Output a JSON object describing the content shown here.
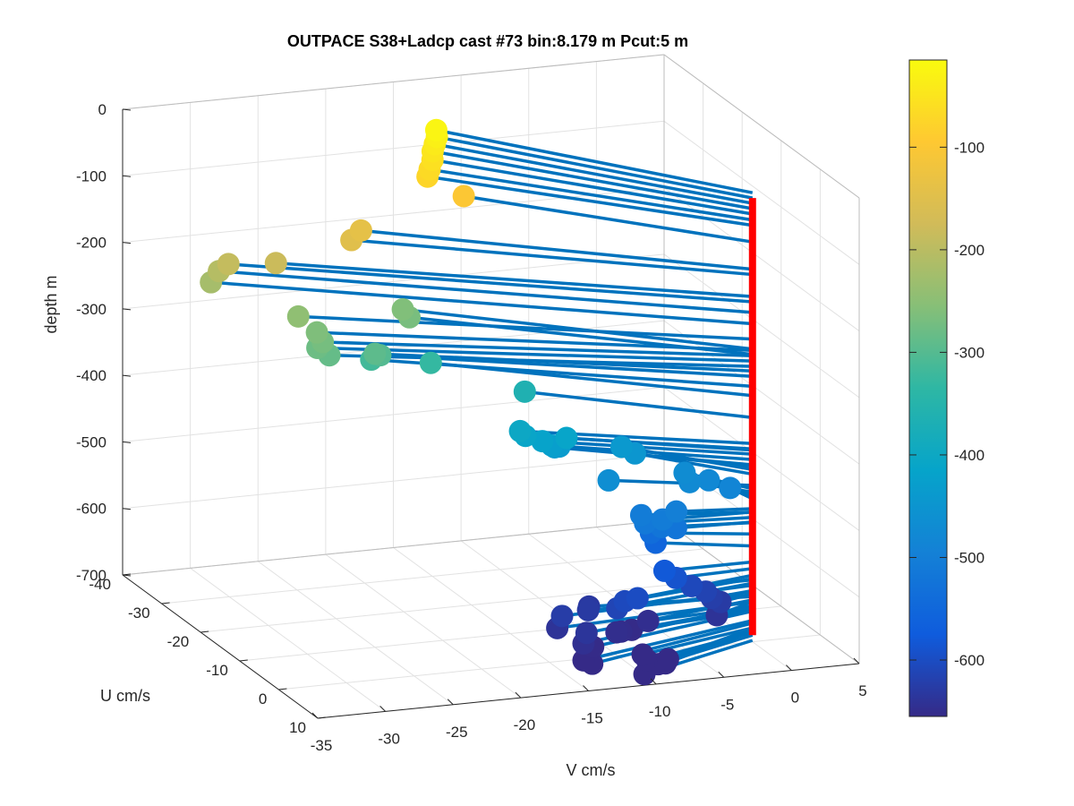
{
  "chart_data": {
    "type": "scatter",
    "title": "OUTPACE S38+Ladcp cast #73 bin:8.179 m  Pcut:5 m",
    "xlabel": "V cm/s",
    "ylabel": "U cm/s",
    "zlabel": "depth m",
    "view": "3d",
    "xlim": [
      -35,
      5
    ],
    "ylim": [
      -40,
      10
    ],
    "zlim": [
      -700,
      0
    ],
    "x_ticks": [
      "-35",
      "-30",
      "-25",
      "-20",
      "-15",
      "-10",
      "-5",
      "0",
      "5"
    ],
    "y_ticks": [
      "-40",
      "-30",
      "-20",
      "-10",
      "0",
      "10"
    ],
    "z_ticks": [
      "0",
      "-100",
      "-200",
      "-300",
      "-400",
      "-500",
      "-600",
      "-700"
    ],
    "grid": true,
    "colorbar": {
      "ticks": [
        "-100",
        "-200",
        "-300",
        "-400",
        "-500",
        "-600"
      ],
      "min": -655,
      "max": -15,
      "colormap": "parula"
    },
    "stick_origin": {
      "u": 0,
      "v": 0
    },
    "stick_color": "#0072BD",
    "origin_line_color": "#FF0000",
    "points_vud": [
      [
        -15.0,
        -29.0,
        -25
      ],
      [
        -15.1,
        -28.5,
        -33
      ],
      [
        -15.4,
        -28.0,
        -41
      ],
      [
        -15.7,
        -27.5,
        -49
      ],
      [
        -16.0,
        -26.5,
        -57
      ],
      [
        -16.5,
        -25.5,
        -66
      ],
      [
        -16.8,
        -25.0,
        -74
      ],
      [
        -14.7,
        -23.0,
        -99
      ],
      [
        -22.0,
        -24.0,
        -140
      ],
      [
        -23.0,
        -23.0,
        -148
      ],
      [
        -28.0,
        -25.0,
        -181
      ],
      [
        -30.7,
        -27.8,
        -189
      ],
      [
        -31.0,
        -29.2,
        -205
      ],
      [
        -31.5,
        -29.5,
        -222
      ],
      [
        -27.5,
        -21.0,
        -245
      ],
      [
        -26.7,
        -19.0,
        -262
      ],
      [
        -26.7,
        -17.5,
        -270
      ],
      [
        -27.1,
        -17.5,
        -278
      ],
      [
        -26.5,
        -16.5,
        -286
      ],
      [
        -23.0,
        -17.0,
        -293
      ],
      [
        -22.3,
        -18.0,
        -301
      ],
      [
        -22.4,
        -20.0,
        -316
      ],
      [
        -19.0,
        -22.0,
        -268
      ],
      [
        -19.2,
        -23.0,
        -260
      ],
      [
        -18.0,
        -20.0,
        -330
      ],
      [
        -12.5,
        -15.0,
        -363
      ],
      [
        -14.0,
        -11.0,
        -402
      ],
      [
        -13.6,
        -11.0,
        -410
      ],
      [
        -12.5,
        -10.5,
        -418
      ],
      [
        -11.8,
        -10.5,
        -426
      ],
      [
        -11.3,
        -11.5,
        -434
      ],
      [
        -11.0,
        -9.5,
        -412
      ],
      [
        -10.8,
        -12.0,
        -436
      ],
      [
        -6.5,
        -11.0,
        -441
      ],
      [
        -5.8,
        -10.0,
        -448
      ],
      [
        -8.9,
        -6.0,
        -465
      ],
      [
        -7.5,
        -2.5,
        -505
      ],
      [
        -7.5,
        -1.5,
        -513
      ],
      [
        -6.3,
        -1.5,
        -521
      ],
      [
        -5.5,
        -0.5,
        -520
      ],
      [
        -5.2,
        -1.5,
        -500
      ],
      [
        -6.5,
        -0.5,
        -505
      ],
      [
        -3.0,
        -7.0,
        -470
      ],
      [
        -3.2,
        -5.0,
        -475
      ],
      [
        -1.5,
        -6.0,
        -480
      ],
      [
        -0.5,
        -4.0,
        -485
      ],
      [
        -6.5,
        -3.5,
        -538
      ],
      [
        -6.0,
        -4.0,
        -556
      ],
      [
        -6.5,
        0.0,
        -580
      ],
      [
        -5.8,
        0.5,
        -590
      ],
      [
        -4.5,
        0.0,
        -607
      ],
      [
        -3.6,
        0.5,
        -615
      ],
      [
        -3.3,
        1.0,
        -623
      ],
      [
        -2.8,
        1.5,
        -628
      ],
      [
        -3.5,
        3.0,
        -640
      ],
      [
        -8.0,
        1.0,
        -648
      ],
      [
        -9.5,
        2.0,
        -654
      ],
      [
        -10.5,
        2.8,
        -651
      ],
      [
        -11.0,
        3.3,
        -649
      ],
      [
        -13.5,
        6.0,
        -654
      ],
      [
        -14.3,
        6.3,
        -646
      ],
      [
        -13.7,
        5.0,
        -637
      ],
      [
        -14.5,
        1.5,
        -625
      ],
      [
        -15.0,
        2.0,
        -640
      ],
      [
        -11.5,
        -2.0,
        -632
      ],
      [
        -12.0,
        -0.5,
        -630
      ],
      [
        -11.0,
        3.5,
        -612
      ],
      [
        -10.3,
        3.0,
        -605
      ],
      [
        -9.5,
        3.5,
        -600
      ],
      [
        -9.5,
        4.8,
        -679
      ],
      [
        -9.3,
        5.3,
        -686
      ],
      [
        -8.7,
        6.0,
        -690
      ],
      [
        -10.0,
        7.0,
        -698
      ],
      [
        -8.5,
        7.2,
        -684
      ],
      [
        -8.2,
        6.8,
        -680
      ],
      [
        -14.5,
        7.0,
        -668
      ],
      [
        -14.0,
        7.5,
        -672
      ]
    ]
  }
}
